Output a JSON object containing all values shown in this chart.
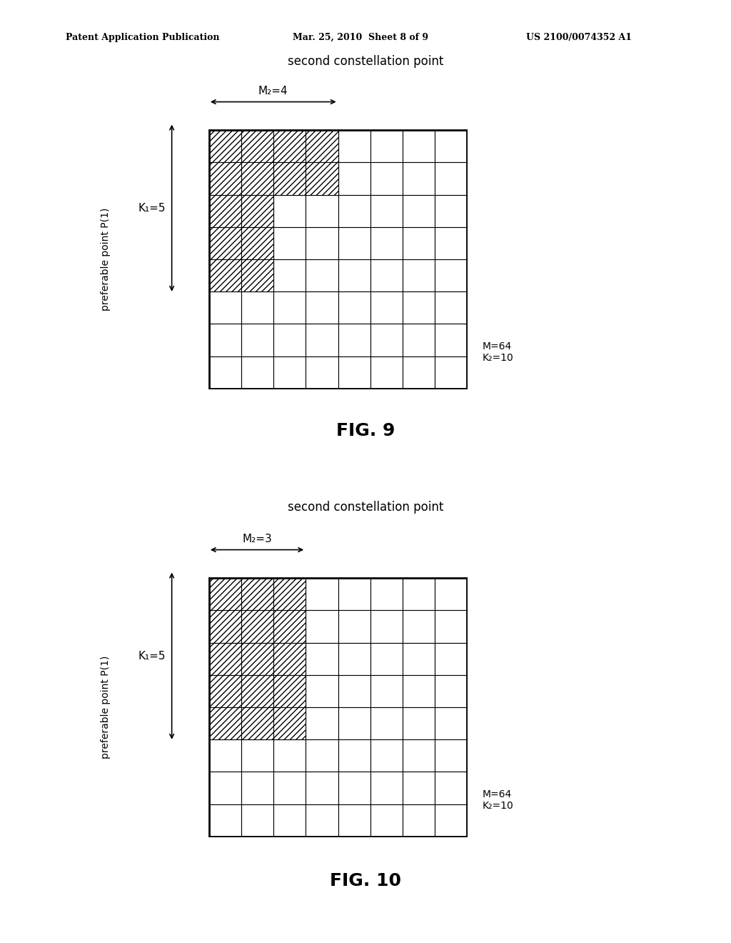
{
  "header_left": "Patent Application Publication",
  "header_mid": "Mar. 25, 2010  Sheet 8 of 9",
  "header_right": "US 2100/0074352 A1",
  "fig9": {
    "title": "second constellation point",
    "m2_label": "M₂=4",
    "k1_label": "K₁=5",
    "y_axis_label": "preferable point P(1)",
    "m_label": "M=64",
    "k2_label": "K₂=10",
    "fig_label": "FIG. 9",
    "grid_cols": 8,
    "grid_rows": 8,
    "m2": 4,
    "k1": 5,
    "hatch_pattern": "staircase",
    "staircase": [
      {
        "cols": 4,
        "rows": 2
      },
      {
        "cols": 2,
        "rows": 3
      }
    ]
  },
  "fig10": {
    "title": "second constellation point",
    "m2_label": "M₂=3",
    "k1_label": "K₁=5",
    "y_axis_label": "preferable point P(1)",
    "m_label": "M=64",
    "k2_label": "K₂=10",
    "fig_label": "FIG. 10",
    "grid_cols": 8,
    "grid_rows": 8,
    "m2": 3,
    "k1": 5,
    "hatch_pattern": "rectangle"
  },
  "hatch_style": "////",
  "grid_color": "#000000",
  "bg_color": "#ffffff",
  "text_color": "#000000"
}
